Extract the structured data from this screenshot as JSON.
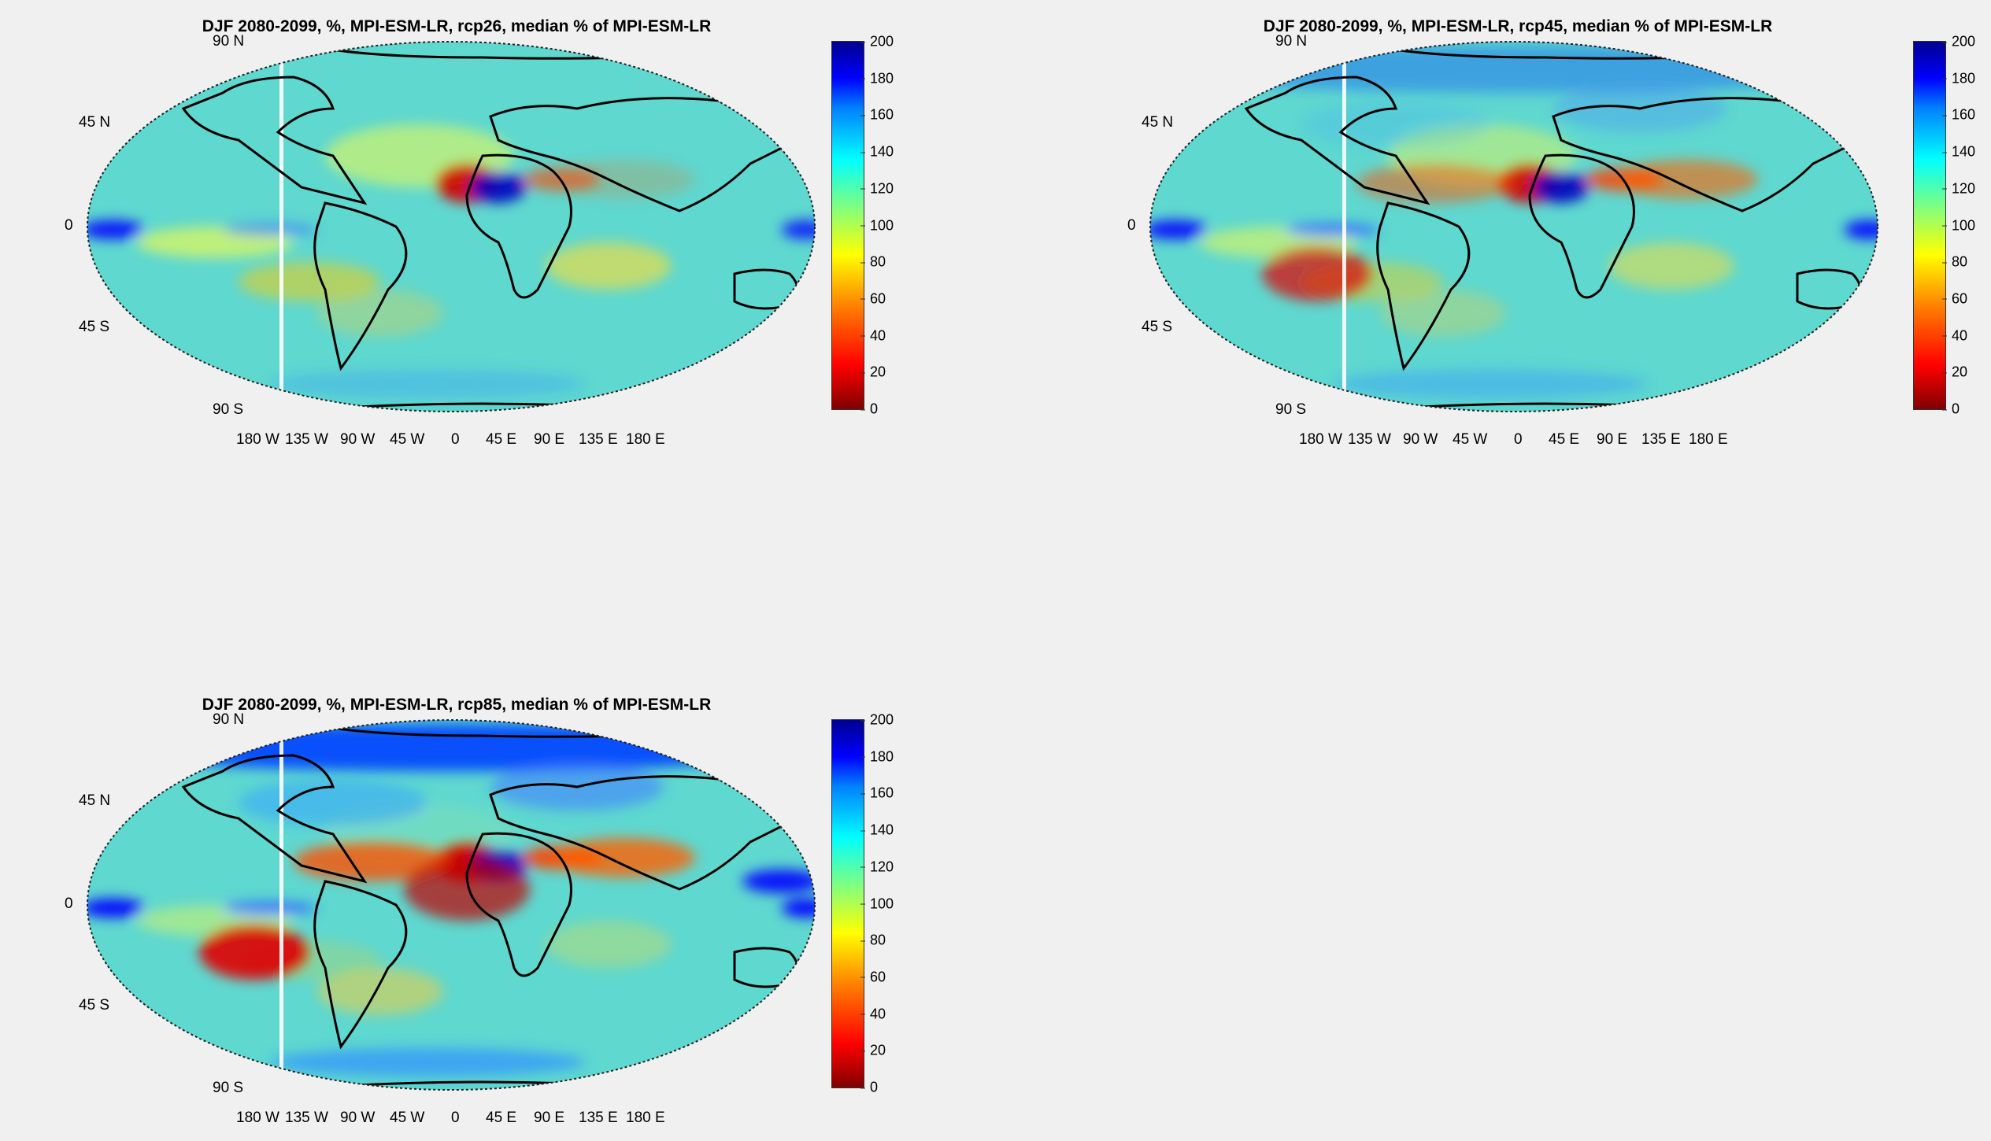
{
  "panels": [
    {
      "id": "rcp26",
      "title": "DJF 2080-2099, %, MPI-ESM-LR, rcp26, median % of MPI-ESM-LR",
      "scenario": "rcp26"
    },
    {
      "id": "rcp45",
      "title": "DJF 2080-2099, %, MPI-ESM-LR, rcp45, median % of MPI-ESM-LR",
      "scenario": "rcp45"
    },
    {
      "id": "rcp85",
      "title": "DJF 2080-2099, %, MPI-ESM-LR, rcp85, median % of MPI-ESM-LR",
      "scenario": "rcp85"
    }
  ],
  "lat_labels": [
    "90 N",
    "45 N",
    "0",
    "45 S",
    "90 S"
  ],
  "lon_labels": [
    "180 W",
    "135 W",
    "90 W",
    "45 W",
    "0",
    "45 E",
    "90 E",
    "135 E",
    "180 E"
  ],
  "colorbar": {
    "ticks": [
      "0",
      "20",
      "40",
      "60",
      "80",
      "100",
      "120",
      "140",
      "160",
      "180",
      "200"
    ],
    "min": 0,
    "max": 200,
    "colormap": "jet-reversed",
    "colors": [
      "#800000",
      "#ff0000",
      "#ff8000",
      "#ffff00",
      "#80ff80",
      "#00ffff",
      "#0080ff",
      "#0000ff",
      "#00008f"
    ]
  },
  "map": {
    "projection": "Robinson",
    "background_color": "#5fd8d0",
    "coastline_color": "#000000"
  }
}
